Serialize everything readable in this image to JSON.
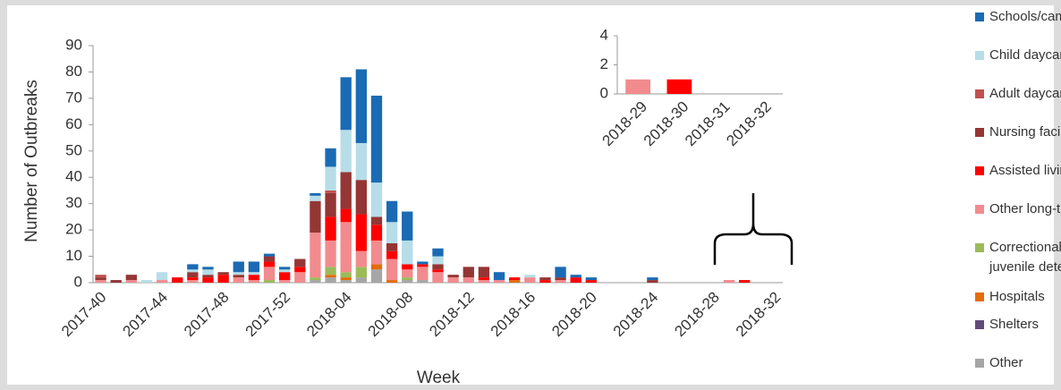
{
  "chart_data": [
    {
      "type": "stacked_bar",
      "x_label": "Week",
      "y_label": "Number of Outbreaks",
      "categories": [
        "2017-40",
        null,
        null,
        null,
        "2017-44",
        null,
        null,
        null,
        "2017-48",
        null,
        null,
        null,
        "2017-52",
        null,
        null,
        null,
        "2018-04",
        null,
        null,
        null,
        "2018-08",
        null,
        null,
        null,
        "2018-12",
        null,
        null,
        null,
        "2018-16",
        null,
        null,
        null,
        "2018-20",
        null,
        null,
        null,
        "2018-24",
        null,
        null,
        null,
        "2018-28",
        null,
        null,
        null,
        "2018-32"
      ],
      "ylim": [
        0,
        90
      ],
      "yticks": [
        0,
        10,
        20,
        30,
        40,
        50,
        60,
        70,
        80,
        90
      ],
      "series": [
        {
          "name": "Schools/camps",
          "color": "#1a6bb4",
          "values": [
            0,
            0,
            0,
            0,
            0,
            0,
            2,
            1,
            0,
            4,
            4,
            1,
            1,
            0,
            1,
            7,
            20,
            28,
            33,
            8,
            11,
            1,
            3,
            0,
            0,
            0,
            3,
            0,
            0,
            0,
            4,
            1,
            1,
            0,
            0,
            0,
            1,
            0,
            0,
            0,
            0,
            0,
            0,
            0,
            0
          ]
        },
        {
          "name": "Child daycares",
          "color": "#b7dde8",
          "values": [
            0,
            0,
            0,
            1,
            3,
            0,
            1,
            2,
            0,
            1,
            1,
            0,
            1,
            0,
            2,
            9,
            16,
            14,
            13,
            8,
            9,
            0,
            3,
            0,
            0,
            0,
            0,
            0,
            1,
            0,
            0,
            0,
            0,
            0,
            0,
            0,
            0,
            0,
            0,
            0,
            0,
            0,
            0,
            0,
            0
          ]
        },
        {
          "name": "Adult daycares",
          "color": "#c0504d",
          "values": [
            1,
            0,
            0,
            0,
            0,
            0,
            0,
            0,
            0,
            0,
            0,
            0,
            0,
            0,
            0,
            1,
            0,
            0,
            0,
            0,
            0,
            0,
            0,
            0,
            0,
            0,
            0,
            0,
            0,
            0,
            0,
            0,
            0,
            0,
            0,
            0,
            0,
            0,
            0,
            0,
            0,
            0,
            0,
            0,
            0
          ]
        },
        {
          "name": "Nursing facilities",
          "color": "#943634",
          "values": [
            1,
            1,
            2,
            0,
            0,
            0,
            2,
            1,
            1,
            1,
            0,
            2,
            0,
            3,
            12,
            9,
            14,
            13,
            3,
            3,
            0,
            0,
            2,
            1,
            4,
            4,
            0,
            0,
            0,
            1,
            1,
            0,
            0,
            0,
            0,
            0,
            1,
            0,
            0,
            0,
            0,
            0,
            0,
            0,
            0
          ]
        },
        {
          "name": "Assisted living facilities",
          "color": "#ff0000",
          "values": [
            0,
            0,
            0,
            0,
            0,
            2,
            1,
            2,
            3,
            0,
            2,
            2,
            3,
            2,
            0,
            9,
            5,
            14,
            6,
            3,
            2,
            1,
            1,
            0,
            0,
            1,
            0,
            1,
            0,
            1,
            0,
            2,
            1,
            0,
            0,
            0,
            0,
            0,
            0,
            0,
            0,
            0,
            1,
            0,
            0
          ]
        },
        {
          "name": "Other long-term care facilities",
          "color": "#f28b8e",
          "values": [
            1,
            0,
            1,
            0,
            1,
            0,
            1,
            0,
            0,
            2,
            1,
            5,
            1,
            4,
            17,
            10,
            19,
            6,
            9,
            8,
            3,
            5,
            4,
            2,
            2,
            1,
            1,
            0,
            2,
            0,
            1,
            0,
            0,
            0,
            0,
            0,
            0,
            0,
            0,
            0,
            0,
            1,
            0,
            0,
            0
          ]
        },
        {
          "name": "Correctional facilities and juvenile detention centers",
          "color": "#9bbb59",
          "values": [
            0,
            0,
            0,
            0,
            0,
            0,
            0,
            0,
            0,
            0,
            0,
            1,
            0,
            0,
            1,
            3,
            2,
            4,
            0,
            0,
            1,
            0,
            0,
            0,
            0,
            0,
            0,
            0,
            0,
            0,
            0,
            0,
            0,
            0,
            0,
            0,
            0,
            0,
            0,
            0,
            0,
            0,
            0,
            0,
            0
          ]
        },
        {
          "name": "Hospitals",
          "color": "#e46c0a",
          "values": [
            0,
            0,
            0,
            0,
            0,
            0,
            0,
            0,
            0,
            0,
            0,
            0,
            0,
            0,
            0,
            1,
            1,
            0,
            2,
            1,
            0,
            0,
            0,
            0,
            0,
            0,
            0,
            1,
            0,
            0,
            0,
            0,
            0,
            0,
            0,
            0,
            0,
            0,
            0,
            0,
            0,
            0,
            0,
            0,
            0
          ]
        },
        {
          "name": "Shelters",
          "color": "#604a7b",
          "values": [
            0,
            0,
            0,
            0,
            0,
            0,
            0,
            0,
            0,
            0,
            0,
            0,
            0,
            0,
            0,
            0,
            0,
            0,
            0,
            0,
            0,
            0,
            0,
            0,
            0,
            0,
            0,
            0,
            0,
            0,
            0,
            0,
            0,
            0,
            0,
            0,
            0,
            0,
            0,
            0,
            0,
            0,
            0,
            0,
            0
          ]
        },
        {
          "name": "Other",
          "color": "#a6a6a6",
          "values": [
            0,
            0,
            0,
            0,
            0,
            0,
            0,
            0,
            0,
            0,
            0,
            0,
            0,
            0,
            1,
            2,
            1,
            2,
            5,
            0,
            1,
            1,
            0,
            0,
            0,
            0,
            0,
            0,
            0,
            0,
            0,
            0,
            0,
            0,
            0,
            0,
            0,
            0,
            0,
            0,
            0,
            0,
            0,
            0,
            0
          ]
        }
      ]
    },
    {
      "type": "bar",
      "categories": [
        "2018-29",
        "2018-30",
        "2018-31",
        "2018-32"
      ],
      "values": [
        1,
        1,
        0,
        0
      ],
      "colors": [
        "#f28b8e",
        "#ff0000",
        "#ff0000",
        "#ff0000"
      ],
      "ylim": [
        0,
        4
      ],
      "yticks": [
        0,
        2,
        4
      ]
    }
  ]
}
